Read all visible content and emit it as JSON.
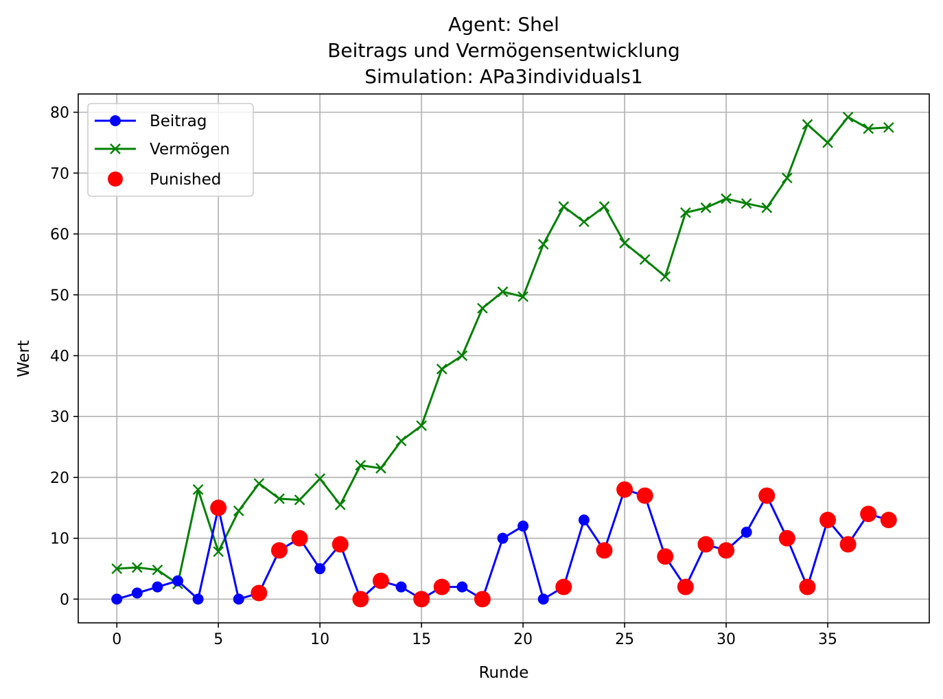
{
  "chart_data": {
    "type": "line",
    "title_lines": [
      "Agent: Shel",
      "Beitrags und Vermögensentwicklung",
      "Simulation: APa3individuals1"
    ],
    "xlabel": "Runde",
    "ylabel": "Wert",
    "xlim": [
      -1.9,
      40.0
    ],
    "ylim": [
      -3.9,
      83.0
    ],
    "xticks": [
      0,
      5,
      10,
      15,
      20,
      25,
      30,
      35
    ],
    "yticks": [
      0,
      10,
      20,
      30,
      40,
      50,
      60,
      70,
      80
    ],
    "grid": true,
    "legend": {
      "position": "top-left",
      "entries": [
        "Beitrag",
        "Vermögen",
        "Punished"
      ]
    },
    "x": [
      0,
      1,
      2,
      3,
      4,
      5,
      6,
      7,
      8,
      9,
      10,
      11,
      12,
      13,
      14,
      15,
      16,
      17,
      18,
      19,
      20,
      21,
      22,
      23,
      24,
      25,
      26,
      27,
      28,
      29,
      30,
      31,
      32,
      33,
      34,
      35,
      36,
      37,
      38
    ],
    "series": [
      {
        "name": "Beitrag",
        "color": "#0000ff",
        "marker": "circle",
        "values": [
          0,
          1,
          2,
          3,
          0,
          15,
          0,
          1,
          8,
          10,
          5,
          9,
          0,
          3,
          2,
          0,
          2,
          2,
          0,
          10,
          12,
          0,
          2,
          13,
          8,
          18,
          17,
          7,
          2,
          9,
          8,
          11,
          17,
          10,
          2,
          13,
          9,
          14,
          13
        ]
      },
      {
        "name": "Vermögen",
        "color": "#008000",
        "marker": "x",
        "values": [
          5,
          5.2,
          4.8,
          2.5,
          18,
          7.8,
          14.5,
          19,
          16.5,
          16.3,
          19.8,
          15.5,
          22,
          21.5,
          26,
          28.5,
          37.8,
          40,
          47.8,
          50.5,
          49.7,
          58.3,
          64.5,
          62,
          64.5,
          58.5,
          55.8,
          53,
          63.5,
          64.3,
          65.8,
          65,
          64.3,
          69.2,
          78,
          75,
          79.2,
          77.3,
          77.5
        ]
      },
      {
        "name": "Punished",
        "color": "#ff0000",
        "marker": "dot",
        "x": [
          5,
          7,
          8,
          9,
          11,
          12,
          13,
          15,
          16,
          18,
          22,
          24,
          25,
          26,
          27,
          28,
          29,
          30,
          32,
          33,
          34,
          35,
          36,
          37,
          38
        ],
        "values": [
          15,
          1,
          8,
          10,
          9,
          0,
          3,
          0,
          2,
          0,
          2,
          8,
          18,
          17,
          7,
          2,
          9,
          8,
          17,
          10,
          2,
          13,
          9,
          14,
          13
        ]
      }
    ]
  }
}
